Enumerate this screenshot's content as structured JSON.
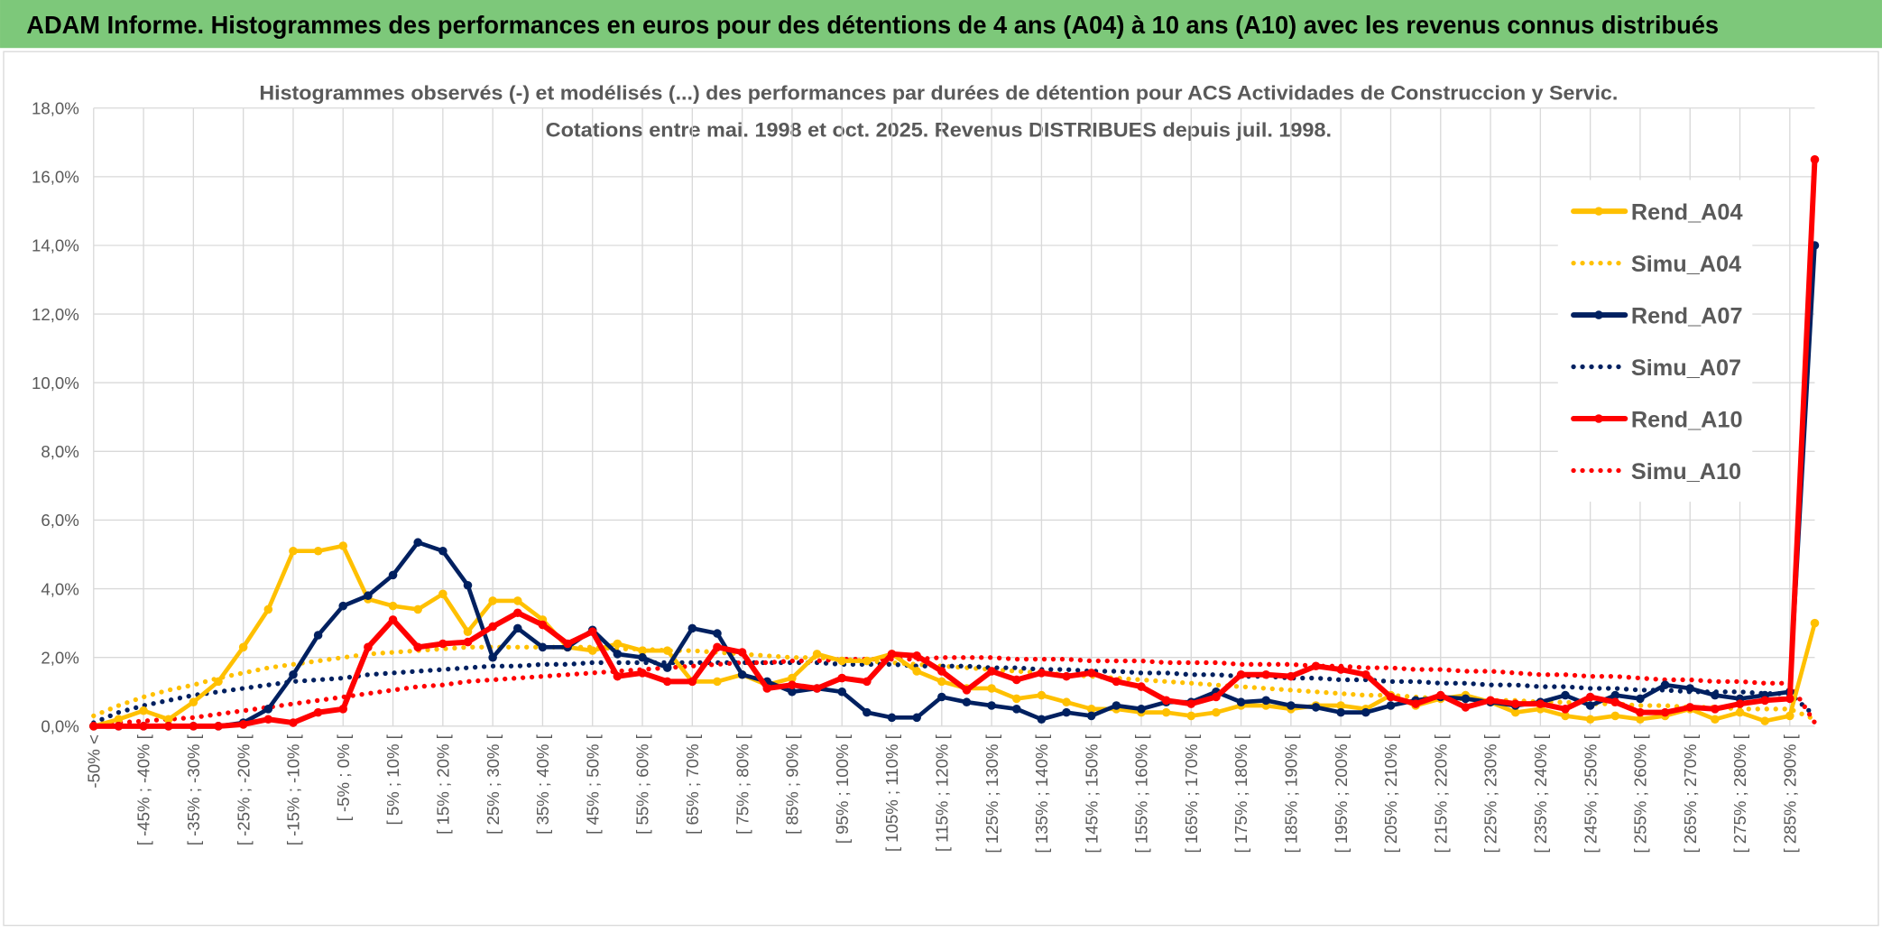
{
  "header": {
    "title": "ADAM Informe. Histogrammes des performances en euros pour des détentions de 4 ans (A04) à 10 ans (A10) avec les revenus connus distribués"
  },
  "chart_data": {
    "type": "line",
    "title": "Histogrammes observés (-) et modélisés (...) des performances par durées de détention pour ACS Actividades de Construccion y Servic.",
    "subtitle": "Cotations entre mai. 1998 et oct. 2025. Revenus DISTRIBUES depuis juil. 1998.",
    "categories": [
      "-50% <",
      null,
      "[ -45% ; -40% [",
      null,
      "[ -35% ; -30% [",
      null,
      "[ -25% ; -20% [",
      null,
      "[ -15% ; -10% [",
      null,
      "[ -5% ; 0% [",
      null,
      "[ 5% ; 10% [",
      null,
      "[ 15% ; 20% [",
      null,
      "[ 25% ; 30% [",
      null,
      "[ 35% ; 40% [",
      null,
      "[ 45% ; 50% [",
      null,
      "[ 55% ; 60% [",
      null,
      "[ 65% ; 70% [",
      null,
      "[ 75% ; 80% [",
      null,
      "[ 85% ; 90% [",
      null,
      "[ 95% ; 100% [",
      null,
      "[ 105% ; 110% [",
      null,
      "[ 115% ; 120% [",
      null,
      "[ 125% ; 130% [",
      null,
      "[ 135% ; 140% [",
      null,
      "[ 145% ; 150% [",
      null,
      "[ 155% ; 160% [",
      null,
      "[ 165% ; 170% [",
      null,
      "[ 175% ; 180% [",
      null,
      "[ 185% ; 190% [",
      null,
      "[ 195% ; 200% [",
      null,
      "[ 205% ; 210% [",
      null,
      "[ 215% ; 220% [",
      null,
      "[ 225% ; 230% [",
      null,
      "[ 235% ; 240% [",
      null,
      "[ 245% ; 250% [",
      null,
      "[ 255% ; 260% [",
      null,
      "[ 265% ; 270% [",
      null,
      "[ 275% ; 280% [",
      null,
      "[ 285% ; 290% [",
      null
    ],
    "series": [
      {
        "name": "Rend_A04",
        "color": "#FFC000",
        "style": "solid",
        "values": [
          0,
          0.2,
          0.45,
          0.2,
          0.7,
          1.3,
          2.3,
          3.4,
          5.1,
          5.1,
          5.25,
          3.7,
          3.5,
          3.4,
          3.85,
          2.75,
          3.65,
          3.65,
          3.1,
          2.3,
          2.2,
          2.4,
          2.2,
          2.2,
          1.3,
          1.3,
          1.5,
          1.2,
          1.4,
          2.1,
          1.9,
          1.9,
          2.1,
          1.6,
          1.3,
          1.1,
          1.1,
          0.8,
          0.9,
          0.7,
          0.5,
          0.5,
          0.4,
          0.4,
          0.3,
          0.4,
          0.6,
          0.6,
          0.5,
          0.6,
          0.6,
          0.5,
          0.9,
          0.6,
          0.8,
          0.9,
          0.7,
          0.4,
          0.5,
          0.3,
          0.2,
          0.3,
          0.2,
          0.3,
          0.5,
          0.2,
          0.4,
          0.15,
          0.3,
          3.0
        ]
      },
      {
        "name": "Simu_A04",
        "color": "#FFC000",
        "style": "dotted",
        "values": [
          0.3,
          0.6,
          0.85,
          1.05,
          1.2,
          1.4,
          1.55,
          1.7,
          1.8,
          1.9,
          2.0,
          2.1,
          2.15,
          2.2,
          2.25,
          2.3,
          2.3,
          2.3,
          2.3,
          2.3,
          2.3,
          2.25,
          2.25,
          2.2,
          2.2,
          2.15,
          2.1,
          2.05,
          2.0,
          2.0,
          1.95,
          1.9,
          1.85,
          1.8,
          1.75,
          1.7,
          1.65,
          1.6,
          1.55,
          1.5,
          1.45,
          1.4,
          1.35,
          1.3,
          1.25,
          1.2,
          1.15,
          1.1,
          1.05,
          1.0,
          0.95,
          0.9,
          0.9,
          0.85,
          0.8,
          0.8,
          0.75,
          0.75,
          0.7,
          0.7,
          0.65,
          0.65,
          0.6,
          0.6,
          0.55,
          0.55,
          0.5,
          0.5,
          0.5,
          0.2
        ]
      },
      {
        "name": "Rend_A07",
        "color": "#002060",
        "style": "solid",
        "values": [
          0,
          0,
          0,
          0,
          0,
          0,
          0.1,
          0.5,
          1.5,
          2.65,
          3.5,
          3.8,
          4.4,
          5.35,
          5.1,
          4.1,
          2.0,
          2.85,
          2.3,
          2.3,
          2.8,
          2.1,
          2.0,
          1.7,
          2.85,
          2.7,
          1.5,
          1.3,
          1.0,
          1.1,
          1.0,
          0.4,
          0.25,
          0.25,
          0.85,
          0.7,
          0.6,
          0.5,
          0.2,
          0.4,
          0.3,
          0.6,
          0.5,
          0.7,
          0.7,
          1.0,
          0.7,
          0.75,
          0.6,
          0.55,
          0.4,
          0.4,
          0.6,
          0.75,
          0.85,
          0.8,
          0.7,
          0.6,
          0.7,
          0.9,
          0.6,
          0.9,
          0.8,
          1.2,
          1.1,
          0.9,
          0.8,
          0.9,
          1.0,
          14.0
        ]
      },
      {
        "name": "Simu_A07",
        "color": "#002060",
        "style": "dotted",
        "values": [
          0.1,
          0.4,
          0.6,
          0.75,
          0.9,
          1.0,
          1.1,
          1.2,
          1.3,
          1.35,
          1.4,
          1.5,
          1.55,
          1.6,
          1.65,
          1.7,
          1.75,
          1.75,
          1.8,
          1.8,
          1.85,
          1.85,
          1.85,
          1.85,
          1.85,
          1.85,
          1.85,
          1.85,
          1.85,
          1.85,
          1.8,
          1.8,
          1.8,
          1.75,
          1.75,
          1.75,
          1.7,
          1.7,
          1.65,
          1.65,
          1.6,
          1.6,
          1.55,
          1.55,
          1.5,
          1.5,
          1.45,
          1.45,
          1.4,
          1.4,
          1.35,
          1.35,
          1.3,
          1.3,
          1.25,
          1.25,
          1.2,
          1.2,
          1.15,
          1.15,
          1.1,
          1.1,
          1.05,
          1.05,
          1.0,
          1.0,
          1.0,
          0.95,
          0.95,
          0.3
        ]
      },
      {
        "name": "Rend_A10",
        "color": "#FF0000",
        "style": "solid",
        "values": [
          0,
          0,
          0,
          0,
          0,
          0,
          0.05,
          0.2,
          0.1,
          0.4,
          0.5,
          2.3,
          3.1,
          2.3,
          2.4,
          2.45,
          2.9,
          3.3,
          2.95,
          2.4,
          2.75,
          1.45,
          1.55,
          1.3,
          1.3,
          2.3,
          2.15,
          1.1,
          1.2,
          1.1,
          1.4,
          1.3,
          2.1,
          2.05,
          1.6,
          1.05,
          1.6,
          1.35,
          1.55,
          1.45,
          1.55,
          1.3,
          1.15,
          0.75,
          0.65,
          0.85,
          1.5,
          1.5,
          1.45,
          1.75,
          1.65,
          1.5,
          0.85,
          0.65,
          0.9,
          0.55,
          0.75,
          0.65,
          0.65,
          0.5,
          0.85,
          0.7,
          0.4,
          0.4,
          0.55,
          0.5,
          0.65,
          0.75,
          0.8,
          16.5
        ]
      },
      {
        "name": "Simu_A10",
        "color": "#FF0000",
        "style": "dotted",
        "values": [
          0.05,
          0.1,
          0.15,
          0.2,
          0.25,
          0.35,
          0.45,
          0.55,
          0.65,
          0.75,
          0.85,
          0.95,
          1.05,
          1.15,
          1.2,
          1.3,
          1.35,
          1.4,
          1.45,
          1.5,
          1.55,
          1.6,
          1.65,
          1.7,
          1.75,
          1.8,
          1.85,
          1.85,
          1.9,
          1.9,
          1.95,
          1.95,
          1.95,
          1.95,
          2.0,
          2.0,
          2.0,
          1.95,
          1.95,
          1.95,
          1.9,
          1.9,
          1.9,
          1.85,
          1.85,
          1.85,
          1.8,
          1.8,
          1.8,
          1.75,
          1.75,
          1.7,
          1.7,
          1.65,
          1.65,
          1.6,
          1.6,
          1.55,
          1.5,
          1.5,
          1.45,
          1.45,
          1.4,
          1.35,
          1.35,
          1.3,
          1.3,
          1.25,
          1.25,
          0.1
        ]
      }
    ],
    "ylim": [
      0,
      18
    ],
    "yticks": [
      {
        "value": 0,
        "label": "0,0%"
      },
      {
        "value": 2,
        "label": "2,0%"
      },
      {
        "value": 4,
        "label": "4,0%"
      },
      {
        "value": 6,
        "label": "6,0%"
      },
      {
        "value": 8,
        "label": "8,0%"
      },
      {
        "value": 10,
        "label": "10,0%"
      },
      {
        "value": 12,
        "label": "12,0%"
      },
      {
        "value": 14,
        "label": "14,0%"
      },
      {
        "value": 16,
        "label": "16,0%"
      },
      {
        "value": 18,
        "label": "18,0%"
      }
    ],
    "grid": true,
    "legend": "right"
  }
}
